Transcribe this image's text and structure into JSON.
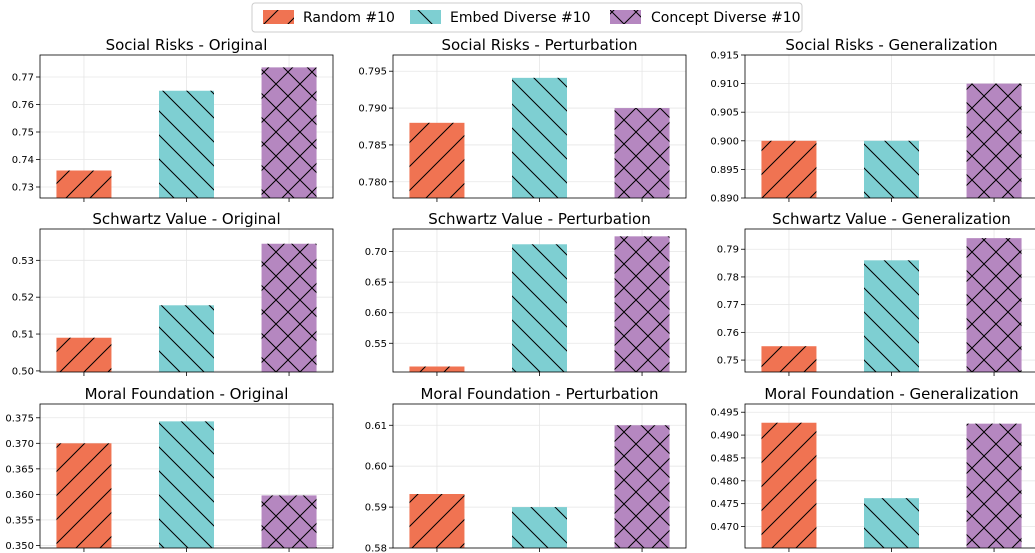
{
  "legend": {
    "items": [
      {
        "label": "Random #10",
        "color": "#f07352",
        "pattern": "forward-diagonal"
      },
      {
        "label": "Embed Diverse #10",
        "color": "#7ecfd2",
        "pattern": "back-diagonal"
      },
      {
        "label": "Concept Diverse #10",
        "color": "#b587c0",
        "pattern": "crosshatch"
      }
    ]
  },
  "chart_data": [
    {
      "type": "bar",
      "title": "Social Risks - Original",
      "categories": [
        "Random #10",
        "Embed Diverse #10",
        "Concept Diverse #10"
      ],
      "values": [
        0.736,
        0.765,
        0.7735
      ],
      "ylim": [
        0.726,
        0.778
      ],
      "yticks": [
        0.73,
        0.74,
        0.75,
        0.76,
        0.77
      ],
      "ytick_labels": [
        "0.73",
        "0.74",
        "0.75",
        "0.76",
        "0.77"
      ],
      "grid": true
    },
    {
      "type": "bar",
      "title": "Social Risks - Perturbation",
      "categories": [
        "Random #10",
        "Embed Diverse #10",
        "Concept Diverse #10"
      ],
      "values": [
        0.788,
        0.7941,
        0.79
      ],
      "ylim": [
        0.7778,
        0.7972
      ],
      "yticks": [
        0.78,
        0.785,
        0.79,
        0.795
      ],
      "ytick_labels": [
        "0.780",
        "0.785",
        "0.790",
        "0.795"
      ],
      "grid": true
    },
    {
      "type": "bar",
      "title": "Social Risks - Generalization",
      "categories": [
        "Random #10",
        "Embed Diverse #10",
        "Concept Diverse #10"
      ],
      "values": [
        0.9,
        0.9,
        0.91
      ],
      "ylim": [
        0.89,
        0.915
      ],
      "yticks": [
        0.89,
        0.895,
        0.9,
        0.905,
        0.91,
        0.915
      ],
      "ytick_labels": [
        "0.890",
        "0.895",
        "0.900",
        "0.905",
        "0.910",
        "0.915"
      ],
      "grid": true
    },
    {
      "type": "bar",
      "title": "Schwartz Value - Original",
      "categories": [
        "Random #10",
        "Embed Diverse #10",
        "Concept Diverse #10"
      ],
      "values": [
        0.509,
        0.5178,
        0.5345
      ],
      "ylim": [
        0.4997,
        0.5385
      ],
      "yticks": [
        0.5,
        0.51,
        0.52,
        0.53
      ],
      "ytick_labels": [
        "0.50",
        "0.51",
        "0.52",
        "0.53"
      ],
      "grid": true
    },
    {
      "type": "bar",
      "title": "Schwartz Value - Perturbation",
      "categories": [
        "Random #10",
        "Embed Diverse #10",
        "Concept Diverse #10"
      ],
      "values": [
        0.512,
        0.712,
        0.725
      ],
      "ylim": [
        0.503,
        0.737
      ],
      "yticks": [
        0.55,
        0.6,
        0.65,
        0.7
      ],
      "ytick_labels": [
        "0.55",
        "0.60",
        "0.65",
        "0.70"
      ],
      "grid": true
    },
    {
      "type": "bar",
      "title": "Schwartz Value - Generalization",
      "categories": [
        "Random #10",
        "Embed Diverse #10",
        "Concept Diverse #10"
      ],
      "values": [
        0.755,
        0.786,
        0.794
      ],
      "ylim": [
        0.7457,
        0.7973
      ],
      "yticks": [
        0.75,
        0.76,
        0.77,
        0.78,
        0.79
      ],
      "ytick_labels": [
        "0.75",
        "0.76",
        "0.77",
        "0.78",
        "0.79"
      ],
      "grid": true
    },
    {
      "type": "bar",
      "title": "Moral Foundation - Original",
      "categories": [
        "Random #10",
        "Embed Diverse #10",
        "Concept Diverse #10"
      ],
      "values": [
        0.37,
        0.3743,
        0.3598
      ],
      "ylim": [
        0.3495,
        0.3777
      ],
      "yticks": [
        0.35,
        0.355,
        0.36,
        0.365,
        0.37,
        0.375
      ],
      "ytick_labels": [
        "0.350",
        "0.355",
        "0.360",
        "0.365",
        "0.370",
        "0.375"
      ],
      "grid": true
    },
    {
      "type": "bar",
      "title": "Moral Foundation - Perturbation",
      "categories": [
        "Random #10",
        "Embed Diverse #10",
        "Concept Diverse #10"
      ],
      "values": [
        0.5932,
        0.59,
        0.61
      ],
      "ylim": [
        0.58,
        0.6152
      ],
      "yticks": [
        0.58,
        0.59,
        0.6,
        0.61
      ],
      "ytick_labels": [
        "0.58",
        "0.59",
        "0.60",
        "0.61"
      ],
      "grid": true
    },
    {
      "type": "bar",
      "title": "Moral Foundation - Generalization",
      "categories": [
        "Random #10",
        "Embed Diverse #10",
        "Concept Diverse #10"
      ],
      "values": [
        0.4927,
        0.4762,
        0.4925
      ],
      "ylim": [
        0.4653,
        0.4968
      ],
      "yticks": [
        0.47,
        0.475,
        0.48,
        0.485,
        0.49,
        0.495
      ],
      "ytick_labels": [
        "0.470",
        "0.475",
        "0.480",
        "0.485",
        "0.490",
        "0.495"
      ],
      "grid": true
    }
  ]
}
